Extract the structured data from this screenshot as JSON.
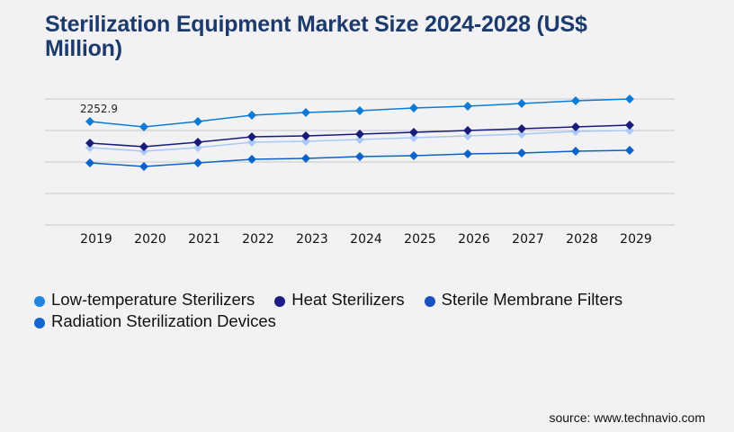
{
  "title": "Sterilization Equipment Market Size 2024-2028 (US$ Million)",
  "source": "source: www.technavio.com",
  "chart_data": {
    "type": "line",
    "title": "Sterilization Equipment Market Size 2024-2028 (US$ Million)",
    "xlabel": "",
    "ylabel": "",
    "x": [
      "2019",
      "2020",
      "2021",
      "2022",
      "2023",
      "2024",
      "2025",
      "2026",
      "2027",
      "2028",
      "2029"
    ],
    "ylim": [
      0,
      2743
    ],
    "y_gridlines": 4,
    "grid": true,
    "legend_position": "bottom-left",
    "series": [
      {
        "name": "Low-temperature Sterilizers",
        "color": "#0b7bd6",
        "legend_color": "#1f85de",
        "values": [
          2252.9,
          2135,
          2253,
          2390,
          2449,
          2488,
          2547,
          2586,
          2645,
          2703,
          2743
        ],
        "labels": {
          "0": "2252.9"
        }
      },
      {
        "name": "Heat Sterilizers",
        "color": "#1a1a78",
        "legend_color": "#1c1c86",
        "values": [
          1783,
          1704,
          1802,
          1920,
          1939,
          1979,
          2018,
          2057,
          2096,
          2135,
          2174
        ],
        "labels": {}
      },
      {
        "name": "Sterile Membrane Filters",
        "color": "#a9c8f4",
        "legend_color": "#1a4fbf",
        "values": [
          1685,
          1606,
          1685,
          1802,
          1822,
          1861,
          1900,
          1939,
          1979,
          2037,
          2057
        ],
        "labels": {}
      },
      {
        "name": "Radiation Sterilization Devices",
        "color": "#0b63c9",
        "legend_color": "#1466d0",
        "values": [
          1352,
          1273,
          1352,
          1430,
          1450,
          1489,
          1508,
          1548,
          1567,
          1606,
          1626
        ],
        "labels": {}
      }
    ],
    "gridline_color": "#c8c8cc"
  }
}
